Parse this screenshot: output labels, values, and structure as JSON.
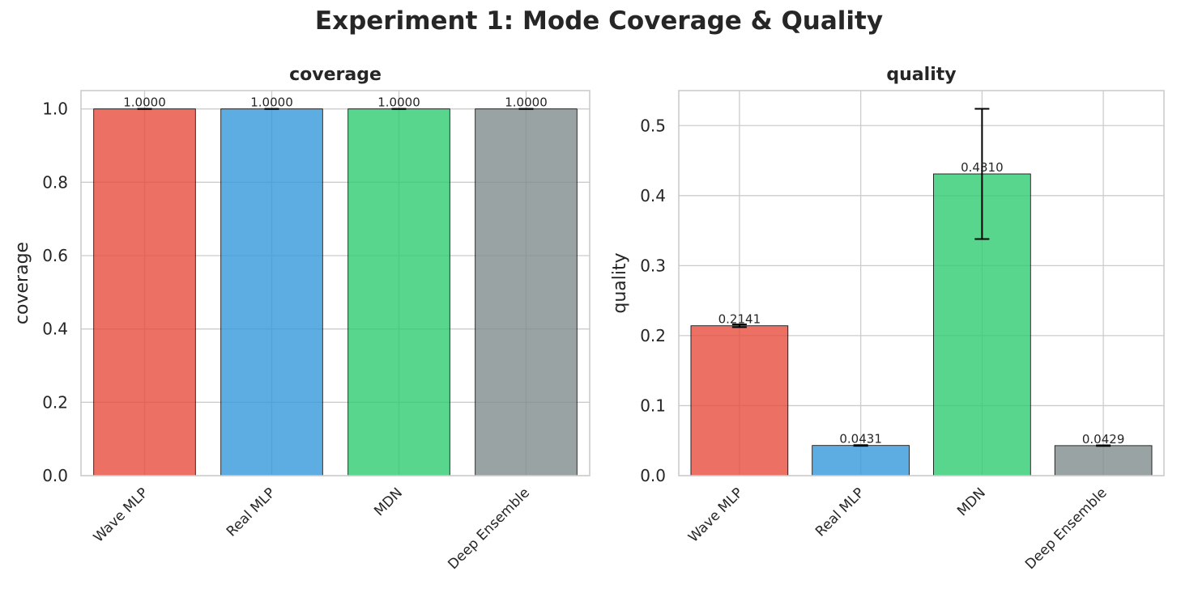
{
  "figure": {
    "title": "Experiment 1: Mode Coverage & Quality"
  },
  "colors": {
    "series": [
      "#e74c3c",
      "#3498db",
      "#2ecc71",
      "#7f8c8d"
    ],
    "grid": "#cccccc",
    "spine": "#cccccc",
    "text": "#262626"
  },
  "chart_data": [
    {
      "type": "bar",
      "title": "coverage",
      "xlabel": "",
      "ylabel": "coverage",
      "categories": [
        "Wave MLP",
        "Real MLP",
        "MDN",
        "Deep Ensemble"
      ],
      "values": [
        1.0,
        1.0,
        1.0,
        1.0
      ],
      "errors": [
        0.0,
        0.0,
        0.0,
        0.0
      ],
      "value_labels": [
        "1.0000",
        "1.0000",
        "1.0000",
        "1.0000"
      ],
      "ylim": [
        0,
        1.05
      ],
      "yticks": [
        0.0,
        0.2,
        0.4,
        0.6,
        0.8,
        1.0
      ],
      "ytick_labels": [
        "0.0",
        "0.2",
        "0.4",
        "0.6",
        "0.8",
        "1.0"
      ],
      "grid": true,
      "legend": "none"
    },
    {
      "type": "bar",
      "title": "quality",
      "xlabel": "",
      "ylabel": "quality",
      "categories": [
        "Wave MLP",
        "Real MLP",
        "MDN",
        "Deep Ensemble"
      ],
      "values": [
        0.2141,
        0.0431,
        0.431,
        0.0429
      ],
      "errors": [
        0.002,
        0.0005,
        0.093,
        0.0005
      ],
      "value_labels": [
        "0.2141",
        "0.0431",
        "0.4310",
        "0.0429"
      ],
      "ylim": [
        0,
        0.55
      ],
      "yticks": [
        0.0,
        0.1,
        0.2,
        0.3,
        0.4,
        0.5
      ],
      "ytick_labels": [
        "0.0",
        "0.1",
        "0.2",
        "0.3",
        "0.4",
        "0.5"
      ],
      "grid": true,
      "legend": "none"
    }
  ]
}
